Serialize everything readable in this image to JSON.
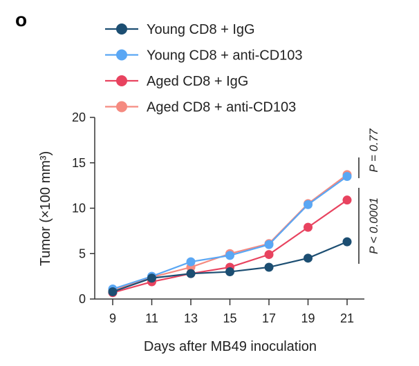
{
  "panel_label": "o",
  "chart_data": {
    "type": "line",
    "title": "",
    "xlabel": "Days after MB49 inoculation",
    "ylabel": "Tumor (×100 mm³)",
    "x": [
      9,
      11,
      13,
      15,
      17,
      19,
      21
    ],
    "xticks": [
      "9",
      "11",
      "13",
      "15",
      "17",
      "19",
      "21"
    ],
    "yticks": [
      "0",
      "5",
      "10",
      "15",
      "20"
    ],
    "ylim": [
      0,
      20
    ],
    "legend_position": "top",
    "series": [
      {
        "name": "Young CD8 + IgG",
        "color": "#1c4e72",
        "values": [
          0.8,
          2.3,
          2.8,
          3.0,
          3.5,
          4.5,
          6.3
        ]
      },
      {
        "name": "Young CD8 + anti-CD103",
        "color": "#5aa7f4",
        "values": [
          1.1,
          2.5,
          4.1,
          4.8,
          6.0,
          10.4,
          13.5
        ]
      },
      {
        "name": "Aged CD8 + IgG",
        "color": "#e8435f",
        "values": [
          0.7,
          1.9,
          2.8,
          3.5,
          4.9,
          7.9,
          10.9
        ]
      },
      {
        "name": "Aged CD8 + anti-CD103",
        "color": "#f58a80",
        "values": [
          0.9,
          2.4,
          3.5,
          5.0,
          6.1,
          10.5,
          13.7
        ]
      }
    ],
    "annotations": [
      "P < 0.0001",
      "P = 0.77"
    ]
  }
}
